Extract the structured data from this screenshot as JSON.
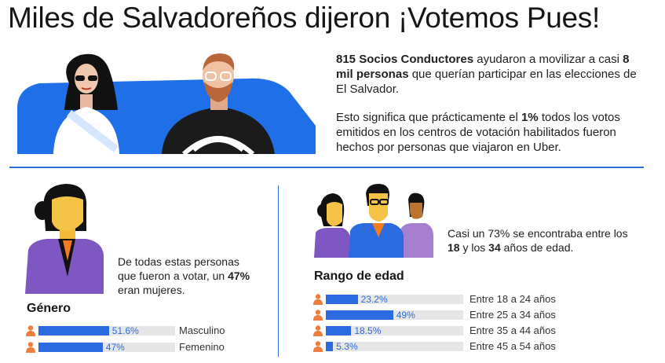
{
  "title": "Miles de Salvadoreños dijeron ¡Votemos Pues!",
  "intro": {
    "p1_strong1": "815 Socios Conductores",
    "p1_text1": " ayudaron a movilizar a casi ",
    "p1_strong2": "8 mil personas",
    "p1_text2": " que querían participar en las elecciones de El Salvador.",
    "p2_text1": "Esto significa que prácticamente el ",
    "p2_strong": "1%",
    "p2_text2": " todos los votos emitidos en los centros de votación habilitados fueron hechos por personas que viajaron en Uber."
  },
  "gender": {
    "text1": "De todas estas personas que fueron a votar, un ",
    "strong": "47%",
    "text2": " eran mujeres.",
    "heading": "Género",
    "bars": [
      {
        "label": "Masculino",
        "value_text": "51.6%",
        "value": 51.6
      },
      {
        "label": "Femenino",
        "value_text": "47%",
        "value": 47
      }
    ]
  },
  "age": {
    "text1": "Casi un 73% se encontraba entre los ",
    "strong1": "18",
    "text2": " y los ",
    "strong2": "34",
    "text3": " años de edad.",
    "heading": "Rango de edad",
    "bars": [
      {
        "label": "Entre 18 a 24 años",
        "value_text": "23.2%",
        "value": 23.2
      },
      {
        "label": "Entre 25 a 34 años",
        "value_text": "49%",
        "value": 49
      },
      {
        "label": "Entre 35 a 44 años",
        "value_text": "18.5%",
        "value": 18.5
      },
      {
        "label": "Entre 45 a 54 años",
        "value_text": "5.3%",
        "value": 5.3
      }
    ]
  },
  "colors": {
    "accent": "#2a6be0",
    "track": "#e6e6e6",
    "person_icon": "#ef7d3c"
  }
}
